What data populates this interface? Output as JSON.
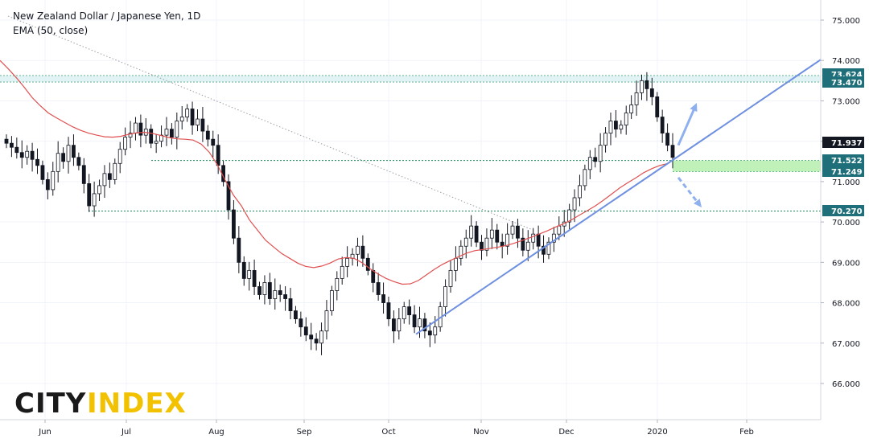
{
  "chart_data": {
    "type": "candlestick",
    "title": "New Zealand Dollar / Japanese Yen, 1D",
    "indicator": "EMA (50, close)",
    "ylim": [
      65.0,
      75.3
    ],
    "y_ticks": [
      "75.000",
      "74.000",
      "73.000",
      "72.000",
      "71.000",
      "70.000",
      "69.000",
      "68.000",
      "67.000",
      "66.000"
    ],
    "x_labels": [
      "Jun",
      "Jul",
      "Aug",
      "Sep",
      "Oct",
      "Nov",
      "Dec",
      "2020",
      "Feb"
    ],
    "horizontal_levels": [
      {
        "value": 73.624,
        "label": "73.624",
        "color": "#1f6f7a"
      },
      {
        "value": 73.47,
        "label": "73.470",
        "color": "#1f6f7a"
      },
      {
        "value": 71.937,
        "label": "71.937",
        "color": "#131722"
      },
      {
        "value": 71.522,
        "label": "71.522",
        "color": "#1f6f7a"
      },
      {
        "value": 71.249,
        "label": "71.249",
        "color": "#1f6f7a"
      },
      {
        "value": 70.27,
        "label": "70.270",
        "color": "#1f6f7a"
      }
    ],
    "series": [
      {
        "name": "EMA (50, close)",
        "color": "#e05050",
        "x": [
          0,
          10,
          20,
          30,
          40,
          50,
          60,
          70,
          80,
          90,
          100,
          110,
          120,
          130,
          140,
          150,
          160,
          170,
          180,
          190,
          200,
          210,
          220,
          230,
          240,
          250,
          260,
          270,
          280,
          290,
          300,
          310,
          320,
          330,
          340,
          350,
          360,
          370,
          380,
          390,
          400,
          410,
          420,
          430,
          440,
          450,
          460,
          470,
          480,
          490,
          500,
          510,
          520,
          530,
          540,
          550,
          560,
          570,
          580,
          590,
          600,
          610,
          620,
          630,
          640,
          650,
          660,
          670,
          680,
          690,
          700,
          710,
          720,
          730,
          740,
          750,
          760,
          770,
          780,
          790,
          800,
          810,
          820,
          830
        ],
        "values": [
          74.0,
          73.8,
          73.58,
          73.34,
          73.08,
          72.88,
          72.7,
          72.58,
          72.47,
          72.36,
          72.27,
          72.2,
          72.15,
          72.11,
          72.1,
          72.12,
          72.17,
          72.21,
          72.22,
          72.19,
          72.14,
          72.09,
          72.06,
          72.05,
          72.03,
          71.93,
          71.73,
          71.42,
          71.03,
          70.67,
          70.4,
          70.05,
          69.8,
          69.55,
          69.38,
          69.22,
          69.1,
          68.98,
          68.9,
          68.87,
          68.91,
          68.98,
          69.08,
          69.12,
          69.1,
          68.99,
          68.84,
          68.71,
          68.6,
          68.52,
          68.46,
          68.47,
          68.55,
          68.69,
          68.83,
          68.95,
          69.05,
          69.14,
          69.23,
          69.29,
          69.32,
          69.35,
          69.38,
          69.42,
          69.48,
          69.55,
          69.62,
          69.7,
          69.78,
          69.87,
          69.95,
          70.05,
          70.17,
          70.28,
          70.4,
          70.54,
          70.69,
          70.84,
          70.97,
          71.09,
          71.22,
          71.32,
          71.4,
          71.45
        ]
      },
      {
        "name": "Trendline",
        "color": "#6f90e0",
        "x": [
          517,
          1020
        ],
        "values": [
          67.22,
          74.02
        ]
      },
      {
        "name": "Dotted downtrend",
        "color": "#9aa0a6",
        "x": [
          10,
          660
        ],
        "values": [
          75.1,
          69.82
        ]
      }
    ],
    "zone": {
      "x_start": 836,
      "x_end": 1020,
      "low": 71.249,
      "high": 71.522,
      "color": "#b8f0b0"
    },
    "arrows": [
      {
        "from": [
          843,
          71.9
        ],
        "to": [
          866,
          72.95
        ],
        "style": "solid"
      },
      {
        "from": [
          843,
          71.1
        ],
        "to": [
          872,
          70.36
        ],
        "style": "dashed"
      }
    ],
    "candles_close": [
      71.95,
      71.85,
      71.72,
      71.6,
      71.75,
      71.55,
      71.4,
      71.05,
      70.8,
      71.25,
      71.7,
      71.5,
      71.9,
      71.6,
      71.4,
      70.95,
      70.4,
      70.7,
      70.9,
      71.2,
      71.05,
      71.45,
      71.8,
      72.1,
      72.2,
      72.45,
      72.15,
      72.3,
      71.95,
      72.0,
      72.15,
      72.3,
      72.1,
      72.5,
      72.6,
      72.8,
      72.4,
      72.55,
      72.25,
      72.05,
      71.9,
      71.4,
      71.0,
      70.3,
      69.6,
      69.0,
      68.6,
      68.8,
      68.4,
      68.2,
      68.5,
      68.1,
      68.3,
      68.2,
      68.1,
      67.8,
      67.6,
      67.4,
      67.2,
      67.1,
      67.0,
      67.3,
      67.8,
      68.3,
      68.6,
      68.9,
      69.1,
      69.2,
      69.4,
      69.1,
      68.8,
      68.5,
      68.2,
      68.0,
      67.6,
      67.3,
      67.6,
      67.9,
      67.7,
      67.4,
      67.6,
      67.3,
      67.2,
      67.4,
      67.9,
      68.4,
      68.8,
      69.1,
      69.4,
      69.6,
      69.9,
      69.5,
      69.3,
      69.6,
      69.8,
      69.5,
      69.4,
      69.7,
      69.9,
      69.6,
      69.3,
      69.5,
      69.7,
      69.4,
      69.2,
      69.5,
      69.7,
      69.9,
      70.0,
      70.3,
      70.6,
      70.9,
      71.3,
      71.6,
      71.5,
      71.9,
      72.2,
      72.5,
      72.3,
      72.4,
      72.7,
      72.9,
      73.2,
      73.5,
      73.3,
      73.1,
      72.6,
      72.2,
      71.9,
      71.6
    ]
  },
  "logo": {
    "part1": "CITY",
    "part2": "INDEX"
  }
}
